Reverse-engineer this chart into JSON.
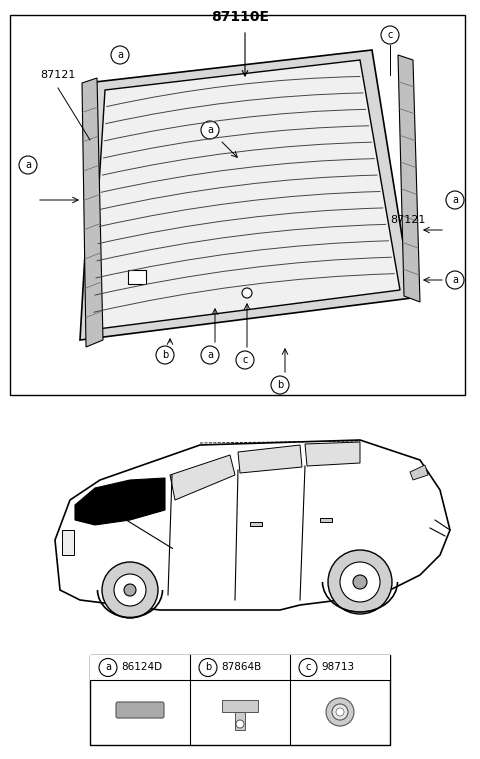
{
  "title": "87110E",
  "bg_color": "#ffffff",
  "border_color": "#000000",
  "label_a": "a",
  "label_b": "b",
  "label_c": "c",
  "part_numbers": {
    "main": "87110E",
    "left_moulding": "87121",
    "right_moulding": "87121"
  },
  "legend": [
    {
      "symbol": "a",
      "code": "86124D"
    },
    {
      "symbol": "b",
      "code": "87864B"
    },
    {
      "symbol": "c",
      "code": "98713"
    }
  ],
  "line_color": "#000000",
  "fill_color": "#e8e8e8",
  "glass_line_color": "#555555"
}
